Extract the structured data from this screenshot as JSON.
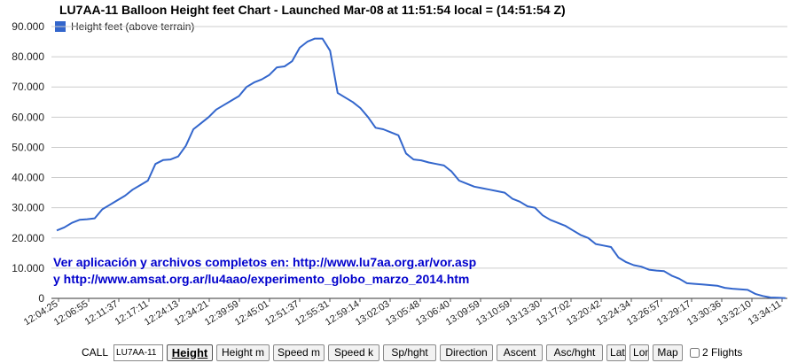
{
  "chart_data": {
    "type": "line",
    "title": "LU7AA-11 Balloon Height feet Chart - Launched Mar-08 at 11:51:54 local = (14:51:54 Z)",
    "legend": "Height feet (above terrain)",
    "legend_position": "top-left",
    "series_color": "#3366cc",
    "ylim": [
      0,
      90000
    ],
    "y_ticks": [
      "0",
      "10.000",
      "20.000",
      "30.000",
      "40.000",
      "50.000",
      "60.000",
      "70.000",
      "80.000",
      "90.000"
    ],
    "x_tick_labels": [
      "12:04:25",
      "12:06:55",
      "12:11:37",
      "12:17:11",
      "12:24:13",
      "12:34:21",
      "12:39:59",
      "12:45:01",
      "12:51:37",
      "12:55:31",
      "12:59:14",
      "13:02:03",
      "13:05:48",
      "13:06:40",
      "13:09:59",
      "13:10:59",
      "13:13:30",
      "13:17:02",
      "13:20:42",
      "13:24:34",
      "13:26:57",
      "13:29:17",
      "13:30:36",
      "13:32:10",
      "13:34:11"
    ],
    "grid": true,
    "series": [
      {
        "values": [
          22500,
          23500,
          25000,
          26000,
          26200,
          26500,
          29500,
          31000,
          32500,
          34000,
          36000,
          37500,
          39000,
          44500,
          45800,
          46000,
          47000,
          50500,
          56000,
          58000,
          60000,
          62500,
          64000,
          65500,
          67000,
          70000,
          71500,
          72500,
          74000,
          76500,
          76800,
          78500,
          83000,
          85000,
          86000,
          86000,
          82000,
          68000,
          66500,
          65000,
          63000,
          60000,
          56500,
          56000,
          55000,
          54000,
          48000,
          46000,
          45700,
          45000,
          44500,
          44000,
          42000,
          39000,
          38000,
          37000,
          36500,
          36000,
          35500,
          35000,
          33000,
          32000,
          30500,
          30000,
          27500,
          26000,
          25000,
          24000,
          22500,
          21000,
          20000,
          18000,
          17500,
          17000,
          13500,
          12000,
          11000,
          10500,
          9500,
          9200,
          9000,
          7500,
          6500,
          5000,
          4800,
          4600,
          4400,
          4200,
          3500,
          3200,
          3000,
          2800,
          1500,
          800,
          300,
          200,
          100
        ]
      }
    ]
  },
  "note": {
    "line1": "Ver aplicación y archivos completos en: http://www.lu7aa.org.ar/vor.asp",
    "line2": "y   http://www.amsat.org.ar/lu4aao/experimento_globo_marzo_2014.htm"
  },
  "controls": {
    "call_label": "CALL",
    "call_value": "LU7AA-11",
    "buttons": [
      "Height",
      "Height m",
      "Speed m",
      "Speed k",
      "Sp/hght",
      "Direction",
      "Ascent",
      "Asc/hght",
      "Lat",
      "Lon",
      "Map"
    ],
    "active_button": "Height",
    "flights_label": "2 Flights"
  }
}
